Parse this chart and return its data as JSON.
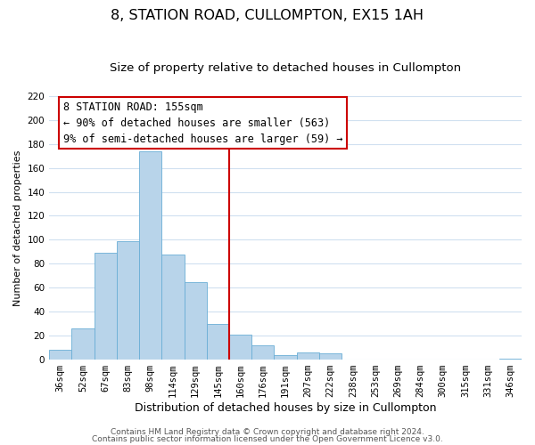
{
  "title": "8, STATION ROAD, CULLOMPTON, EX15 1AH",
  "subtitle": "Size of property relative to detached houses in Cullompton",
  "xlabel": "Distribution of detached houses by size in Cullompton",
  "ylabel": "Number of detached properties",
  "bar_labels": [
    "36sqm",
    "52sqm",
    "67sqm",
    "83sqm",
    "98sqm",
    "114sqm",
    "129sqm",
    "145sqm",
    "160sqm",
    "176sqm",
    "191sqm",
    "207sqm",
    "222sqm",
    "238sqm",
    "253sqm",
    "269sqm",
    "284sqm",
    "300sqm",
    "315sqm",
    "331sqm",
    "346sqm"
  ],
  "bar_values": [
    8,
    26,
    89,
    99,
    174,
    88,
    65,
    30,
    21,
    12,
    4,
    6,
    5,
    0,
    0,
    0,
    0,
    0,
    0,
    0,
    1
  ],
  "bar_color": "#b8d4ea",
  "bar_edge_color": "#6aaed6",
  "vline_color": "#cc0000",
  "annotation_title": "8 STATION ROAD: 155sqm",
  "annotation_line1": "← 90% of detached houses are smaller (563)",
  "annotation_line2": "9% of semi-detached houses are larger (59) →",
  "annotation_box_color": "#ffffff",
  "annotation_box_edge": "#cc0000",
  "ylim": [
    0,
    220
  ],
  "yticks": [
    0,
    20,
    40,
    60,
    80,
    100,
    120,
    140,
    160,
    180,
    200,
    220
  ],
  "footer1": "Contains HM Land Registry data © Crown copyright and database right 2024.",
  "footer2": "Contains public sector information licensed under the Open Government Licence v3.0.",
  "title_fontsize": 11.5,
  "subtitle_fontsize": 9.5,
  "xlabel_fontsize": 9,
  "ylabel_fontsize": 8,
  "tick_fontsize": 7.5,
  "footer_fontsize": 6.5,
  "annotation_fontsize": 8.5,
  "background_color": "#ffffff",
  "grid_color": "#d0e0f0"
}
